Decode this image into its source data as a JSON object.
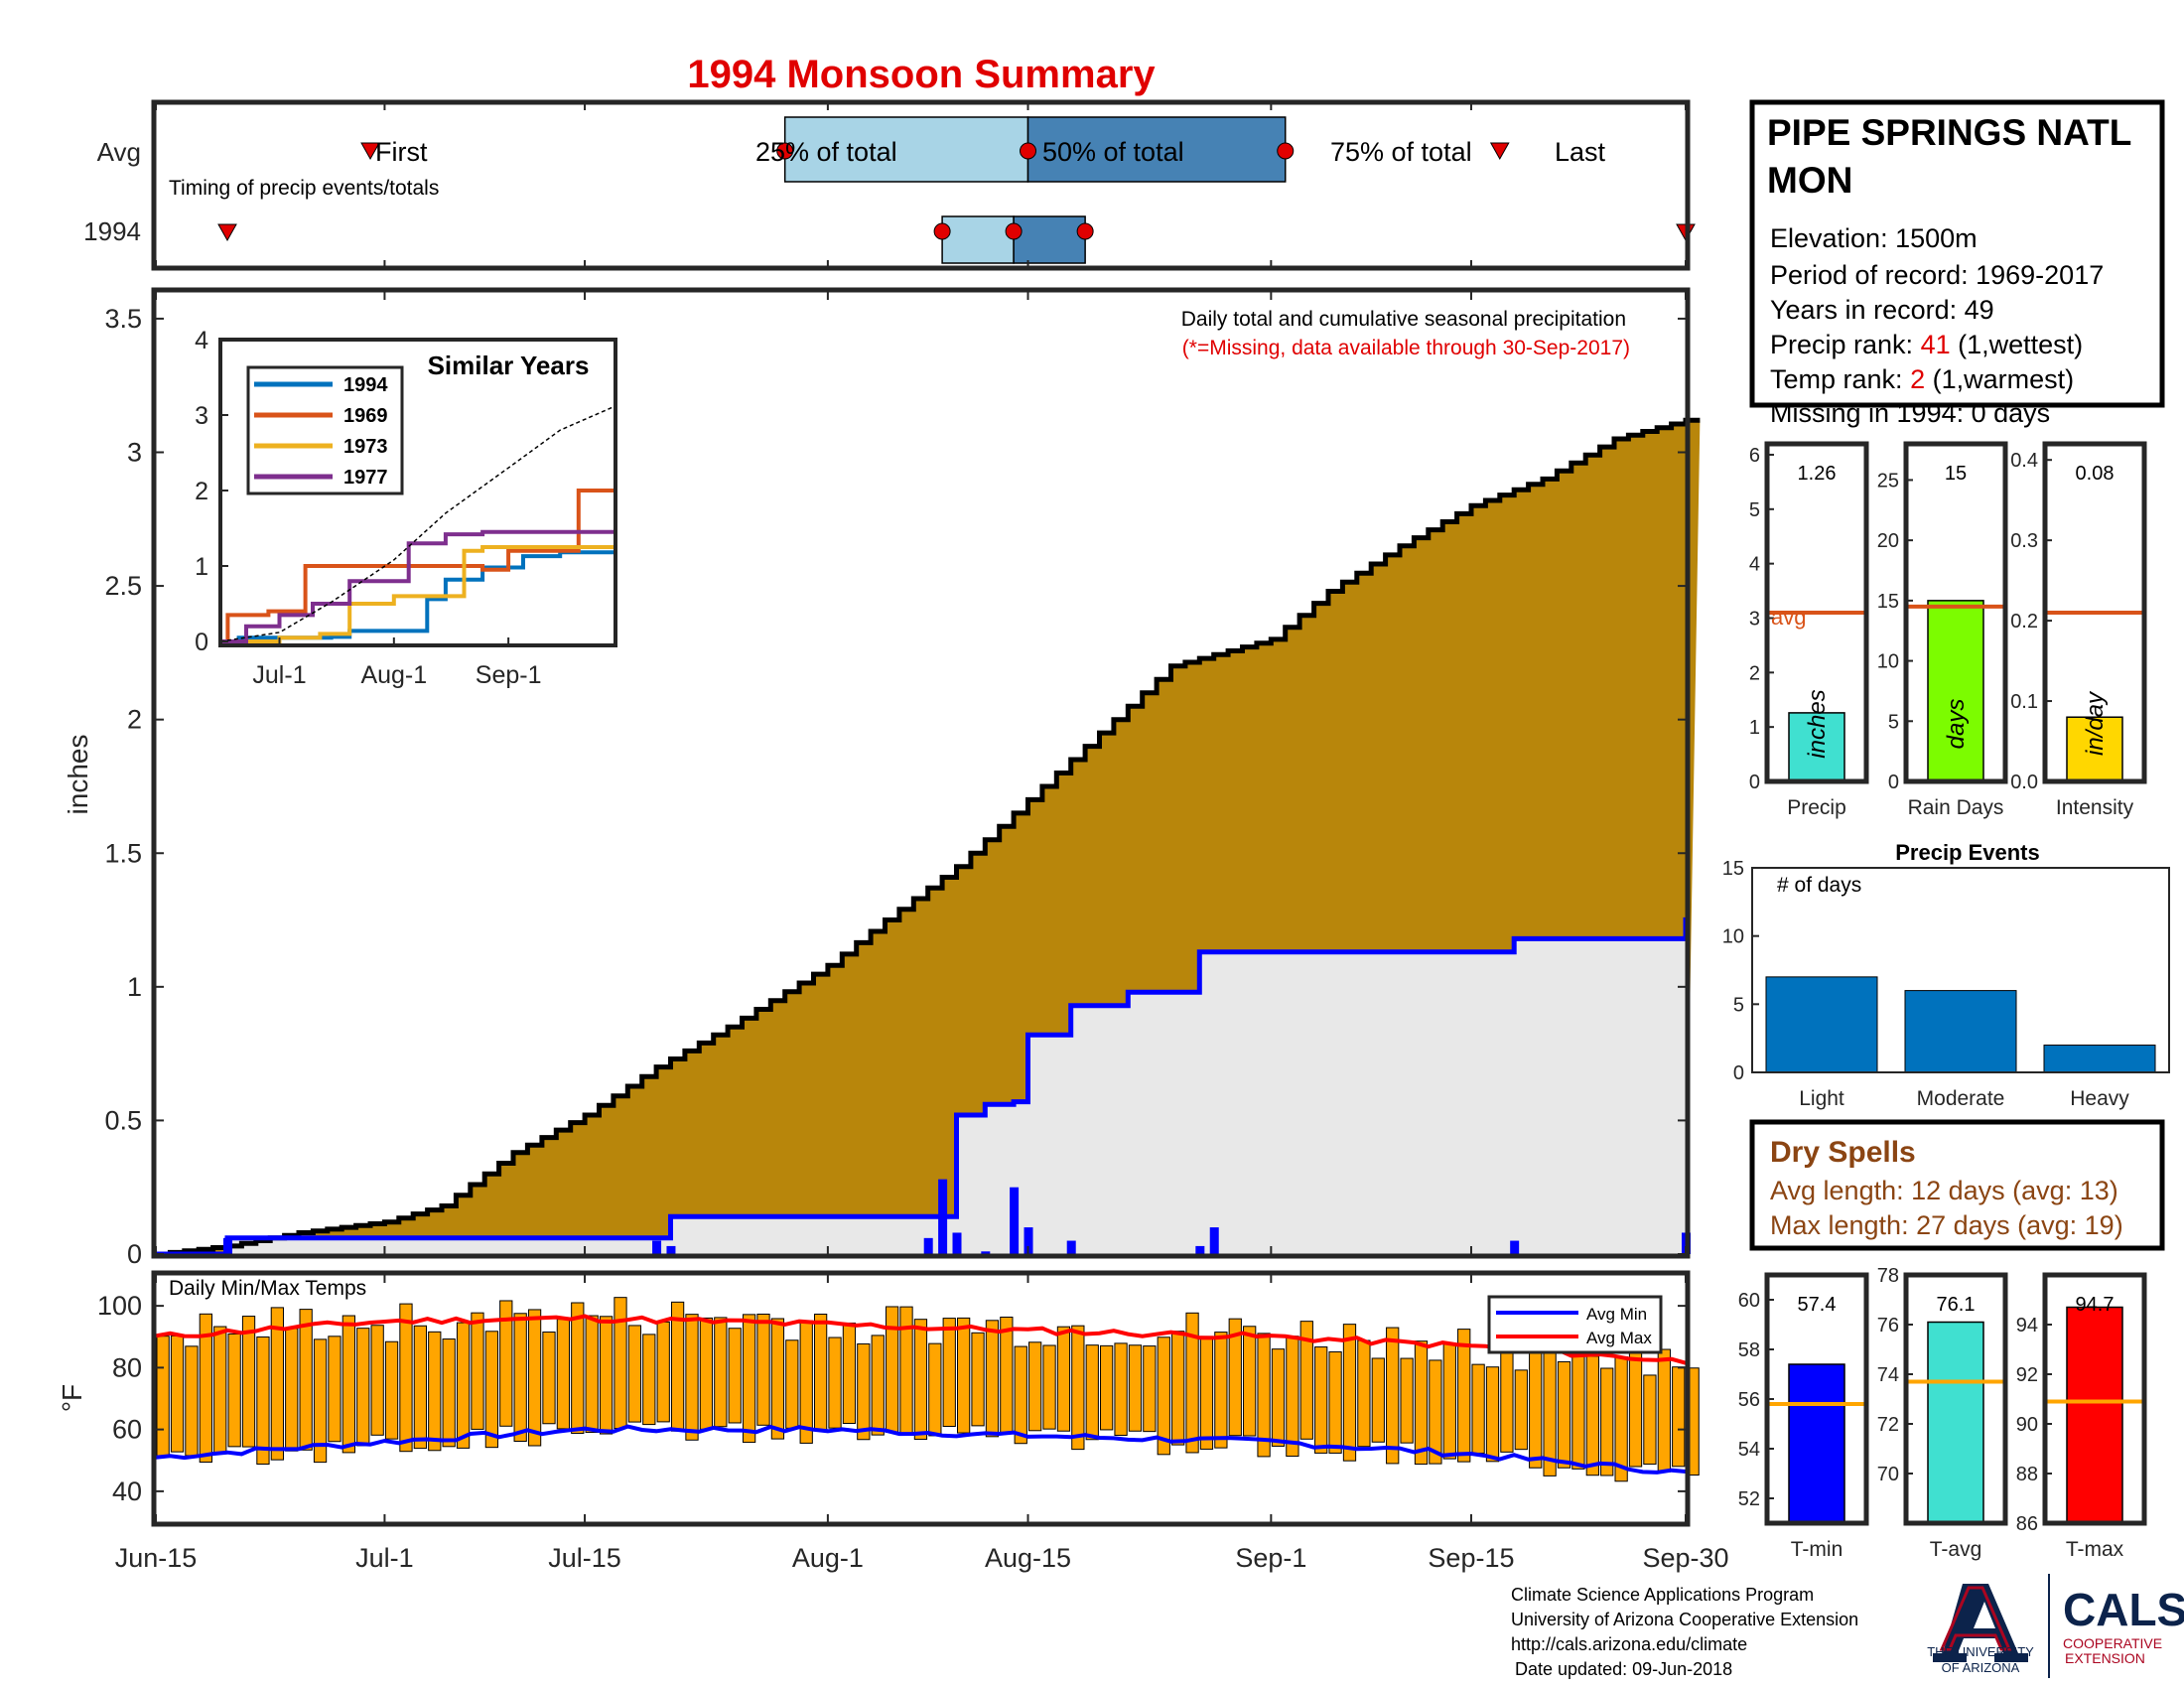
{
  "title": "1994 Monsoon Summary",
  "colors": {
    "title": "#e00000",
    "cumulative_fill": "#b8860b",
    "current_fill": "#e8e8e8",
    "current_line": "#0000ff",
    "daily_bar": "#0000ff",
    "timing_light": "#a8d4e6",
    "timing_dark": "#4682b4",
    "marker": "#e00000",
    "temp_bar": "#ffa500",
    "avg_min": "#0000ff",
    "avg_max": "#ff0000",
    "avg_line": "#d95319",
    "missing_text": "#e00000",
    "dry_spell_text": "#8b4513"
  },
  "timing": {
    "row_labels": [
      "Avg",
      "1994"
    ],
    "subtitle": "Timing of precip events/totals",
    "avg": {
      "first_label": "First",
      "last_label": "Last",
      "p25_label": "25% of total",
      "p50_label": "50% of total",
      "p75_label": "75% of total",
      "first": "2017-06-30",
      "p25": "2017-07-29",
      "p50": "2017-08-15",
      "p75": "2017-09-02",
      "last": "2017-09-17"
    },
    "current": {
      "first": "2017-06-20",
      "p25": "2017-08-09",
      "p50": "2017-08-14",
      "p75": "2017-08-19",
      "last": "2017-09-30"
    }
  },
  "info_box": {
    "station": "PIPE SPRINGS NATL MON",
    "elevation": "Elevation: 1500m",
    "period": "Period of record: 1969-2017",
    "years": "Years in record: 49",
    "precip_rank_label": "Precip rank: ",
    "precip_rank": "41",
    "precip_rank_suffix": " (1,wettest)",
    "temp_rank_label": "Temp rank: ",
    "temp_rank": "2",
    "temp_rank_suffix": " (1,warmest)",
    "missing": "Missing in 1994: 0 days"
  },
  "main_panel": {
    "note": "Daily total and cumulative seasonal precipitation",
    "missing_note": "(*=Missing, data available through 30-Sep-2017)",
    "ylabel": "inches"
  },
  "x_axis": {
    "ticks": [
      {
        "date": "2017-06-15",
        "label": "Jun-15"
      },
      {
        "date": "2017-07-01",
        "label": "Jul-1"
      },
      {
        "date": "2017-07-15",
        "label": "Jul-15"
      },
      {
        "date": "2017-08-01",
        "label": "Aug-1"
      },
      {
        "date": "2017-08-15",
        "label": "Aug-15"
      },
      {
        "date": "2017-09-01",
        "label": "Sep-1"
      },
      {
        "date": "2017-09-15",
        "label": "Sep-15"
      },
      {
        "date": "2017-09-30",
        "label": "Sep-30"
      }
    ]
  },
  "inset": {
    "title": "Similar Years",
    "x_ticks": [
      {
        "date": "2017-07-01",
        "label": "Jul-1"
      },
      {
        "date": "2017-08-01",
        "label": "Aug-1"
      },
      {
        "date": "2017-09-01",
        "label": "Sep-1"
      }
    ],
    "y_ticks": [
      0,
      1,
      2,
      3,
      4
    ]
  },
  "temp_panel": {
    "label": "Daily Min/Max Temps",
    "ylabel": "°F",
    "legend": [
      "Avg Min",
      "Avg Max"
    ]
  },
  "side_bars": {
    "precip": {
      "label": "Precip",
      "value": "1.26",
      "unit": "inches",
      "avg_label": "avg"
    },
    "rain_days": {
      "label": "Rain Days",
      "value": "15",
      "unit": "days"
    },
    "intensity": {
      "label": "Intensity",
      "value": "0.08",
      "unit": "in/day"
    }
  },
  "events": {
    "title": "Precip Events",
    "ylabel": "# of days",
    "categories": [
      "Light",
      "Moderate",
      "Heavy"
    ],
    "values": [
      7,
      6,
      2
    ]
  },
  "dry_spells": {
    "title": "Dry Spells",
    "avg": "Avg length: 12 days (avg: 13)",
    "max": "Max length: 27 days (avg: 19)"
  },
  "temp_bars": {
    "tmin": {
      "label": "T-min",
      "value": "57.4"
    },
    "tavg": {
      "label": "T-avg",
      "value": "76.1"
    },
    "tmax": {
      "label": "T-max",
      "value": "94.7"
    }
  },
  "footer": {
    "line1": "Climate Science Applications Program",
    "line2": "University of Arizona Cooperative Extension",
    "line3": "http://cals.arizona.edu/climate",
    "line4": "Date updated: 09-Jun-2018"
  },
  "logos": {
    "ua_line1": "THE UNIVERSITY",
    "ua_line2": "OF ARIZONA",
    "cals": "CALS",
    "cals_sub1": "COOPERATIVE",
    "cals_sub2": "EXTENSION"
  },
  "chart_data": [
    {
      "type": "area",
      "title": "Daily total and cumulative seasonal precipitation",
      "ylabel": "inches",
      "ylim": [
        0,
        3.6
      ],
      "xlim": [
        "2017-06-15",
        "2017-09-30"
      ],
      "y_ticks": [
        0,
        0.5,
        1,
        1.5,
        2,
        2.5,
        3,
        3.5
      ],
      "series": [
        {
          "name": "average cumulative",
          "x": [
            "2017-06-15",
            "2017-06-20",
            "2017-06-25",
            "2017-07-01",
            "2017-07-05",
            "2017-07-10",
            "2017-07-15",
            "2017-07-20",
            "2017-07-25",
            "2017-08-01",
            "2017-08-05",
            "2017-08-10",
            "2017-08-15",
            "2017-08-20",
            "2017-08-25",
            "2017-09-01",
            "2017-09-05",
            "2017-09-10",
            "2017-09-15",
            "2017-09-20",
            "2017-09-25",
            "2017-09-30"
          ],
          "values": [
            0,
            0.03,
            0.08,
            0.12,
            0.18,
            0.38,
            0.52,
            0.7,
            0.85,
            1.08,
            1.25,
            1.45,
            1.7,
            1.95,
            2.2,
            2.3,
            2.48,
            2.65,
            2.8,
            2.9,
            3.05,
            3.12
          ]
        },
        {
          "name": "1994 cumulative",
          "x": [
            "2017-06-15",
            "2017-06-20",
            "2017-07-20",
            "2017-07-21",
            "2017-08-09",
            "2017-08-10",
            "2017-08-12",
            "2017-08-14",
            "2017-08-15",
            "2017-08-18",
            "2017-08-22",
            "2017-08-27",
            "2017-09-18",
            "2017-09-30"
          ],
          "values": [
            0,
            0.06,
            0.06,
            0.14,
            0.14,
            0.52,
            0.56,
            0.57,
            0.82,
            0.93,
            0.98,
            1.13,
            1.18,
            1.26
          ]
        }
      ],
      "daily": {
        "x": [
          "2017-06-20",
          "2017-07-20",
          "2017-07-21",
          "2017-08-08",
          "2017-08-09",
          "2017-08-10",
          "2017-08-12",
          "2017-08-14",
          "2017-08-15",
          "2017-08-18",
          "2017-08-27",
          "2017-08-28",
          "2017-09-18",
          "2017-09-30"
        ],
        "values": [
          0.06,
          0.05,
          0.03,
          0.06,
          0.28,
          0.08,
          0.01,
          0.25,
          0.1,
          0.05,
          0.03,
          0.1,
          0.05,
          0.08
        ]
      }
    },
    {
      "type": "line",
      "title": "Similar Years",
      "ylim": [
        0,
        4
      ],
      "series": [
        {
          "name": "1994",
          "color": "#0072bd",
          "x": [
            "2017-06-15",
            "2017-06-20",
            "2017-07-15",
            "2017-07-20",
            "2017-08-05",
            "2017-08-10",
            "2017-08-15",
            "2017-08-25",
            "2017-09-05",
            "2017-09-15",
            "2017-09-30"
          ],
          "values": [
            0,
            0.05,
            0.06,
            0.14,
            0.14,
            0.56,
            0.82,
            0.98,
            1.13,
            1.18,
            1.26
          ]
        },
        {
          "name": "1969",
          "color": "#d95319",
          "x": [
            "2017-06-15",
            "2017-06-17",
            "2017-06-28",
            "2017-07-08",
            "2017-07-18",
            "2017-08-05",
            "2017-08-25",
            "2017-09-01",
            "2017-09-10",
            "2017-09-20",
            "2017-09-30"
          ],
          "values": [
            0,
            0.35,
            0.4,
            1.0,
            1.0,
            1.0,
            0.95,
            1.2,
            1.2,
            2.0,
            2.0
          ]
        },
        {
          "name": "1973",
          "color": "#edb120",
          "x": [
            "2017-06-15",
            "2017-07-01",
            "2017-07-12",
            "2017-07-20",
            "2017-08-01",
            "2017-08-10",
            "2017-08-20",
            "2017-08-25",
            "2017-09-10",
            "2017-09-30"
          ],
          "values": [
            0,
            0.05,
            0.1,
            0.5,
            0.6,
            0.6,
            1.2,
            1.25,
            1.25,
            1.3
          ]
        },
        {
          "name": "1977",
          "color": "#7e2f8e",
          "x": [
            "2017-06-15",
            "2017-06-22",
            "2017-07-01",
            "2017-07-10",
            "2017-07-20",
            "2017-08-05",
            "2017-08-15",
            "2017-08-25",
            "2017-09-30"
          ],
          "values": [
            0,
            0.2,
            0.35,
            0.5,
            0.8,
            1.3,
            1.42,
            1.45,
            1.45
          ]
        },
        {
          "name": "average",
          "dashed": true,
          "x": [
            "2017-06-15",
            "2017-07-01",
            "2017-07-15",
            "2017-08-01",
            "2017-08-15",
            "2017-09-01",
            "2017-09-15",
            "2017-09-30"
          ],
          "values": [
            0,
            0.12,
            0.52,
            1.08,
            1.7,
            2.3,
            2.8,
            3.12
          ]
        }
      ]
    },
    {
      "type": "bar",
      "title": "Daily Min/Max Temps",
      "ylabel": "°F",
      "ylim": [
        30,
        110
      ],
      "y_ticks": [
        40,
        60,
        80,
        100
      ],
      "avg_min": {
        "x": [
          "2017-06-15",
          "2017-07-01",
          "2017-07-15",
          "2017-08-01",
          "2017-08-15",
          "2017-09-01",
          "2017-09-15",
          "2017-09-30"
        ],
        "values": [
          51,
          56,
          60,
          60,
          58,
          56,
          52,
          46
        ]
      },
      "avg_max": {
        "x": [
          "2017-06-15",
          "2017-07-01",
          "2017-07-15",
          "2017-08-01",
          "2017-08-15",
          "2017-09-01",
          "2017-09-15",
          "2017-09-30"
        ],
        "values": [
          90,
          95,
          96,
          94,
          92,
          90,
          87,
          82
        ]
      }
    },
    {
      "type": "bar",
      "title": "Precip / Rain Days / Intensity",
      "categories": [
        "Precip",
        "Rain Days",
        "Intensity"
      ],
      "values": [
        1.26,
        15,
        0.08
      ],
      "averages": [
        3.1,
        14.5,
        0.21
      ],
      "ylims": [
        [
          0,
          6.2
        ],
        [
          0,
          28
        ],
        [
          0,
          0.42
        ]
      ],
      "y_ticks": [
        [
          0,
          1,
          2,
          3,
          4,
          5,
          6
        ],
        [
          0,
          5,
          10,
          15,
          20,
          25
        ],
        [
          0,
          0.1,
          0.2,
          0.3,
          0.4
        ]
      ]
    },
    {
      "type": "bar",
      "title": "Precip Events",
      "categories": [
        "Light",
        "Moderate",
        "Heavy"
      ],
      "values": [
        7,
        6,
        2
      ],
      "ylim": [
        0,
        15
      ],
      "y_ticks": [
        0,
        5,
        10,
        15
      ]
    },
    {
      "type": "bar",
      "title": "Temperature",
      "categories": [
        "T-min",
        "T-avg",
        "T-max"
      ],
      "values": [
        57.4,
        76.1,
        94.7
      ],
      "averages": [
        55.8,
        73.7,
        90.9
      ],
      "ylims": [
        [
          51,
          61
        ],
        [
          68,
          78
        ],
        [
          86,
          96
        ]
      ],
      "y_ticks": [
        [
          52,
          54,
          56,
          58,
          60
        ],
        [
          70,
          72,
          74,
          76,
          78
        ],
        [
          86,
          88,
          90,
          92,
          94
        ]
      ]
    }
  ]
}
